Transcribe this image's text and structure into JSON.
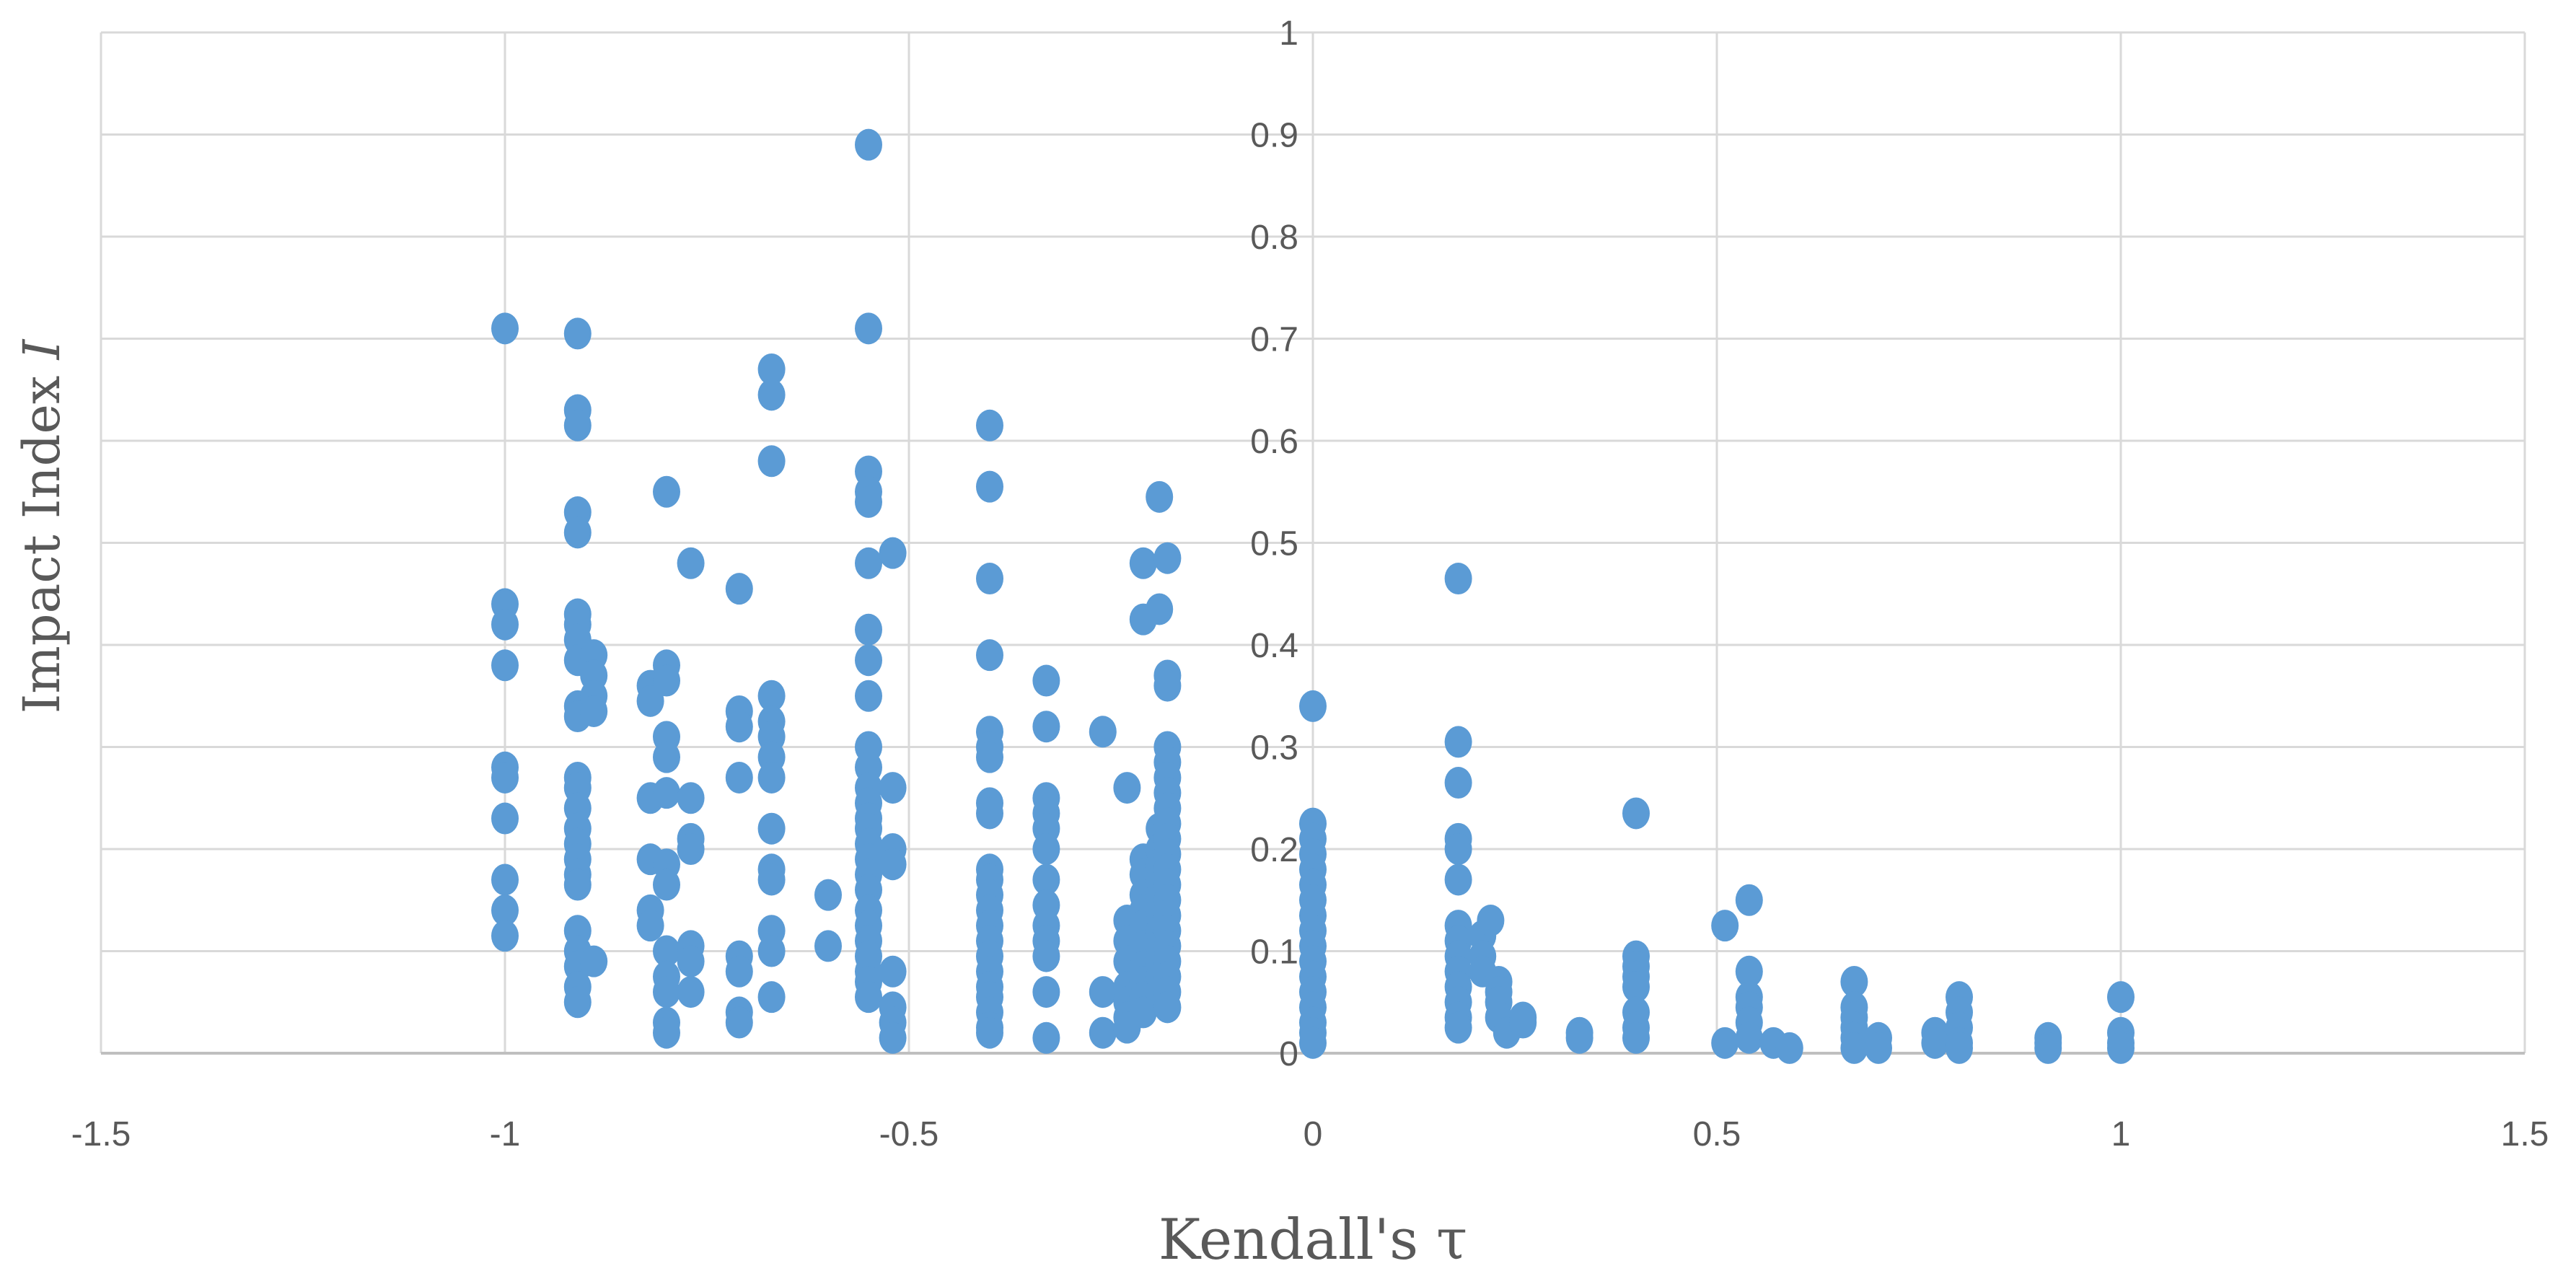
{
  "chart_data": {
    "type": "scatter",
    "title": "",
    "xlabel": "Kendall's τ",
    "ylabel_text": "Impact Index ",
    "ylabel_var": "I",
    "xlim": [
      -1.5,
      1.5
    ],
    "ylim": [
      0,
      1
    ],
    "x_ticks": [
      -1.5,
      -1,
      -0.5,
      0,
      0.5,
      1,
      1.5
    ],
    "x_tick_labels": [
      "-1.5",
      "-1",
      "-0.5",
      "0",
      "0.5",
      "1",
      "1.5"
    ],
    "y_ticks": [
      0,
      0.1,
      0.2,
      0.3,
      0.4,
      0.5,
      0.6,
      0.7,
      0.8,
      0.9,
      1
    ],
    "y_tick_labels": [
      "0",
      "0.1",
      "0.2",
      "0.3",
      "0.4",
      "0.5",
      "0.6",
      "0.7",
      "0.8",
      "0.9",
      "1"
    ],
    "grid": true,
    "marker_color": "#5b9bd5",
    "series": [
      {
        "name": "points",
        "points": [
          [
            -1.0,
            0.71
          ],
          [
            -1.0,
            0.44
          ],
          [
            -1.0,
            0.42
          ],
          [
            -1.0,
            0.38
          ],
          [
            -1.0,
            0.28
          ],
          [
            -1.0,
            0.27
          ],
          [
            -1.0,
            0.23
          ],
          [
            -1.0,
            0.17
          ],
          [
            -1.0,
            0.14
          ],
          [
            -1.0,
            0.115
          ],
          [
            -0.91,
            0.705
          ],
          [
            -0.91,
            0.63
          ],
          [
            -0.91,
            0.615
          ],
          [
            -0.91,
            0.53
          ],
          [
            -0.91,
            0.51
          ],
          [
            -0.91,
            0.43
          ],
          [
            -0.91,
            0.42
          ],
          [
            -0.91,
            0.405
          ],
          [
            -0.91,
            0.385
          ],
          [
            -0.91,
            0.34
          ],
          [
            -0.91,
            0.33
          ],
          [
            -0.91,
            0.27
          ],
          [
            -0.91,
            0.26
          ],
          [
            -0.91,
            0.24
          ],
          [
            -0.91,
            0.22
          ],
          [
            -0.91,
            0.205
          ],
          [
            -0.91,
            0.19
          ],
          [
            -0.91,
            0.175
          ],
          [
            -0.91,
            0.165
          ],
          [
            -0.91,
            0.12
          ],
          [
            -0.91,
            0.1
          ],
          [
            -0.91,
            0.085
          ],
          [
            -0.91,
            0.065
          ],
          [
            -0.91,
            0.05
          ],
          [
            -0.89,
            0.39
          ],
          [
            -0.89,
            0.37
          ],
          [
            -0.89,
            0.35
          ],
          [
            -0.89,
            0.335
          ],
          [
            -0.89,
            0.09
          ],
          [
            -0.82,
            0.36
          ],
          [
            -0.82,
            0.345
          ],
          [
            -0.82,
            0.25
          ],
          [
            -0.82,
            0.19
          ],
          [
            -0.82,
            0.14
          ],
          [
            -0.82,
            0.125
          ],
          [
            -0.8,
            0.55
          ],
          [
            -0.8,
            0.38
          ],
          [
            -0.8,
            0.365
          ],
          [
            -0.8,
            0.31
          ],
          [
            -0.8,
            0.29
          ],
          [
            -0.8,
            0.255
          ],
          [
            -0.8,
            0.185
          ],
          [
            -0.8,
            0.165
          ],
          [
            -0.8,
            0.1
          ],
          [
            -0.8,
            0.075
          ],
          [
            -0.8,
            0.06
          ],
          [
            -0.8,
            0.03
          ],
          [
            -0.8,
            0.02
          ],
          [
            -0.77,
            0.48
          ],
          [
            -0.77,
            0.25
          ],
          [
            -0.77,
            0.21
          ],
          [
            -0.77,
            0.2
          ],
          [
            -0.77,
            0.105
          ],
          [
            -0.77,
            0.09
          ],
          [
            -0.77,
            0.06
          ],
          [
            -0.71,
            0.455
          ],
          [
            -0.71,
            0.335
          ],
          [
            -0.71,
            0.32
          ],
          [
            -0.71,
            0.27
          ],
          [
            -0.71,
            0.095
          ],
          [
            -0.71,
            0.08
          ],
          [
            -0.71,
            0.04
          ],
          [
            -0.71,
            0.03
          ],
          [
            -0.67,
            0.67
          ],
          [
            -0.67,
            0.645
          ],
          [
            -0.67,
            0.58
          ],
          [
            -0.67,
            0.35
          ],
          [
            -0.67,
            0.325
          ],
          [
            -0.67,
            0.31
          ],
          [
            -0.67,
            0.29
          ],
          [
            -0.67,
            0.27
          ],
          [
            -0.67,
            0.22
          ],
          [
            -0.67,
            0.18
          ],
          [
            -0.67,
            0.17
          ],
          [
            -0.67,
            0.12
          ],
          [
            -0.67,
            0.1
          ],
          [
            -0.67,
            0.055
          ],
          [
            -0.6,
            0.155
          ],
          [
            -0.6,
            0.105
          ],
          [
            -0.55,
            0.89
          ],
          [
            -0.55,
            0.71
          ],
          [
            -0.55,
            0.57
          ],
          [
            -0.55,
            0.55
          ],
          [
            -0.55,
            0.54
          ],
          [
            -0.55,
            0.48
          ],
          [
            -0.55,
            0.415
          ],
          [
            -0.55,
            0.385
          ],
          [
            -0.55,
            0.35
          ],
          [
            -0.55,
            0.3
          ],
          [
            -0.55,
            0.28
          ],
          [
            -0.55,
            0.26
          ],
          [
            -0.55,
            0.245
          ],
          [
            -0.55,
            0.23
          ],
          [
            -0.55,
            0.22
          ],
          [
            -0.55,
            0.205
          ],
          [
            -0.55,
            0.19
          ],
          [
            -0.55,
            0.175
          ],
          [
            -0.55,
            0.16
          ],
          [
            -0.55,
            0.14
          ],
          [
            -0.55,
            0.125
          ],
          [
            -0.55,
            0.11
          ],
          [
            -0.55,
            0.095
          ],
          [
            -0.55,
            0.08
          ],
          [
            -0.55,
            0.07
          ],
          [
            -0.55,
            0.055
          ],
          [
            -0.52,
            0.49
          ],
          [
            -0.52,
            0.26
          ],
          [
            -0.52,
            0.2
          ],
          [
            -0.52,
            0.185
          ],
          [
            -0.52,
            0.08
          ],
          [
            -0.52,
            0.045
          ],
          [
            -0.52,
            0.03
          ],
          [
            -0.52,
            0.015
          ],
          [
            -0.4,
            0.615
          ],
          [
            -0.4,
            0.555
          ],
          [
            -0.4,
            0.465
          ],
          [
            -0.4,
            0.39
          ],
          [
            -0.4,
            0.315
          ],
          [
            -0.4,
            0.3
          ],
          [
            -0.4,
            0.29
          ],
          [
            -0.4,
            0.245
          ],
          [
            -0.4,
            0.235
          ],
          [
            -0.4,
            0.18
          ],
          [
            -0.4,
            0.17
          ],
          [
            -0.4,
            0.155
          ],
          [
            -0.4,
            0.14
          ],
          [
            -0.4,
            0.125
          ],
          [
            -0.4,
            0.11
          ],
          [
            -0.4,
            0.095
          ],
          [
            -0.4,
            0.08
          ],
          [
            -0.4,
            0.065
          ],
          [
            -0.4,
            0.055
          ],
          [
            -0.4,
            0.04
          ],
          [
            -0.4,
            0.025
          ],
          [
            -0.4,
            0.02
          ],
          [
            -0.33,
            0.365
          ],
          [
            -0.33,
            0.32
          ],
          [
            -0.33,
            0.25
          ],
          [
            -0.33,
            0.235
          ],
          [
            -0.33,
            0.22
          ],
          [
            -0.33,
            0.2
          ],
          [
            -0.33,
            0.17
          ],
          [
            -0.33,
            0.145
          ],
          [
            -0.33,
            0.125
          ],
          [
            -0.33,
            0.11
          ],
          [
            -0.33,
            0.095
          ],
          [
            -0.33,
            0.06
          ],
          [
            -0.33,
            0.015
          ],
          [
            -0.26,
            0.315
          ],
          [
            -0.26,
            0.06
          ],
          [
            -0.26,
            0.02
          ],
          [
            -0.23,
            0.26
          ],
          [
            -0.23,
            0.13
          ],
          [
            -0.23,
            0.11
          ],
          [
            -0.23,
            0.09
          ],
          [
            -0.23,
            0.065
          ],
          [
            -0.23,
            0.05
          ],
          [
            -0.23,
            0.035
          ],
          [
            -0.23,
            0.025
          ],
          [
            -0.21,
            0.48
          ],
          [
            -0.21,
            0.425
          ],
          [
            -0.21,
            0.19
          ],
          [
            -0.21,
            0.175
          ],
          [
            -0.21,
            0.155
          ],
          [
            -0.21,
            0.14
          ],
          [
            -0.21,
            0.125
          ],
          [
            -0.21,
            0.105
          ],
          [
            -0.21,
            0.085
          ],
          [
            -0.21,
            0.07
          ],
          [
            -0.21,
            0.055
          ],
          [
            -0.21,
            0.04
          ],
          [
            -0.19,
            0.545
          ],
          [
            -0.19,
            0.435
          ],
          [
            -0.19,
            0.22
          ],
          [
            -0.19,
            0.2
          ],
          [
            -0.19,
            0.185
          ],
          [
            -0.19,
            0.17
          ],
          [
            -0.19,
            0.155
          ],
          [
            -0.19,
            0.14
          ],
          [
            -0.19,
            0.12
          ],
          [
            -0.19,
            0.105
          ],
          [
            -0.19,
            0.09
          ],
          [
            -0.19,
            0.075
          ],
          [
            -0.19,
            0.06
          ],
          [
            -0.18,
            0.485
          ],
          [
            -0.18,
            0.37
          ],
          [
            -0.18,
            0.36
          ],
          [
            -0.18,
            0.3
          ],
          [
            -0.18,
            0.285
          ],
          [
            -0.18,
            0.27
          ],
          [
            -0.18,
            0.255
          ],
          [
            -0.18,
            0.24
          ],
          [
            -0.18,
            0.225
          ],
          [
            -0.18,
            0.21
          ],
          [
            -0.18,
            0.195
          ],
          [
            -0.18,
            0.18
          ],
          [
            -0.18,
            0.165
          ],
          [
            -0.18,
            0.15
          ],
          [
            -0.18,
            0.135
          ],
          [
            -0.18,
            0.12
          ],
          [
            -0.18,
            0.105
          ],
          [
            -0.18,
            0.09
          ],
          [
            -0.18,
            0.075
          ],
          [
            -0.18,
            0.06
          ],
          [
            -0.18,
            0.045
          ],
          [
            0.0,
            0.34
          ],
          [
            0.0,
            0.225
          ],
          [
            0.0,
            0.21
          ],
          [
            0.0,
            0.195
          ],
          [
            0.0,
            0.18
          ],
          [
            0.0,
            0.165
          ],
          [
            0.0,
            0.15
          ],
          [
            0.0,
            0.135
          ],
          [
            0.0,
            0.12
          ],
          [
            0.0,
            0.105
          ],
          [
            0.0,
            0.09
          ],
          [
            0.0,
            0.075
          ],
          [
            0.0,
            0.06
          ],
          [
            0.0,
            0.045
          ],
          [
            0.0,
            0.03
          ],
          [
            0.0,
            0.02
          ],
          [
            0.0,
            0.01
          ],
          [
            0.18,
            0.465
          ],
          [
            0.18,
            0.305
          ],
          [
            0.18,
            0.265
          ],
          [
            0.18,
            0.21
          ],
          [
            0.18,
            0.2
          ],
          [
            0.18,
            0.17
          ],
          [
            0.18,
            0.125
          ],
          [
            0.18,
            0.11
          ],
          [
            0.18,
            0.095
          ],
          [
            0.18,
            0.08
          ],
          [
            0.18,
            0.065
          ],
          [
            0.18,
            0.05
          ],
          [
            0.18,
            0.035
          ],
          [
            0.18,
            0.025
          ],
          [
            0.21,
            0.115
          ],
          [
            0.21,
            0.095
          ],
          [
            0.21,
            0.08
          ],
          [
            0.22,
            0.13
          ],
          [
            0.23,
            0.07
          ],
          [
            0.23,
            0.06
          ],
          [
            0.23,
            0.05
          ],
          [
            0.23,
            0.035
          ],
          [
            0.24,
            0.02
          ],
          [
            0.26,
            0.035
          ],
          [
            0.26,
            0.03
          ],
          [
            0.33,
            0.02
          ],
          [
            0.33,
            0.015
          ],
          [
            0.4,
            0.235
          ],
          [
            0.4,
            0.095
          ],
          [
            0.4,
            0.085
          ],
          [
            0.4,
            0.075
          ],
          [
            0.4,
            0.065
          ],
          [
            0.4,
            0.04
          ],
          [
            0.4,
            0.025
          ],
          [
            0.4,
            0.015
          ],
          [
            0.51,
            0.125
          ],
          [
            0.51,
            0.01
          ],
          [
            0.54,
            0.15
          ],
          [
            0.54,
            0.08
          ],
          [
            0.54,
            0.055
          ],
          [
            0.54,
            0.045
          ],
          [
            0.54,
            0.03
          ],
          [
            0.54,
            0.015
          ],
          [
            0.57,
            0.01
          ],
          [
            0.59,
            0.005
          ],
          [
            0.67,
            0.07
          ],
          [
            0.67,
            0.045
          ],
          [
            0.67,
            0.035
          ],
          [
            0.67,
            0.025
          ],
          [
            0.67,
            0.015
          ],
          [
            0.67,
            0.005
          ],
          [
            0.7,
            0.015
          ],
          [
            0.7,
            0.005
          ],
          [
            0.77,
            0.02
          ],
          [
            0.77,
            0.01
          ],
          [
            0.8,
            0.055
          ],
          [
            0.8,
            0.04
          ],
          [
            0.8,
            0.025
          ],
          [
            0.8,
            0.01
          ],
          [
            0.8,
            0.005
          ],
          [
            0.91,
            0.015
          ],
          [
            0.91,
            0.01
          ],
          [
            0.91,
            0.005
          ],
          [
            1.0,
            0.055
          ],
          [
            1.0,
            0.02
          ],
          [
            1.0,
            0.01
          ],
          [
            1.0,
            0.005
          ]
        ]
      }
    ]
  }
}
